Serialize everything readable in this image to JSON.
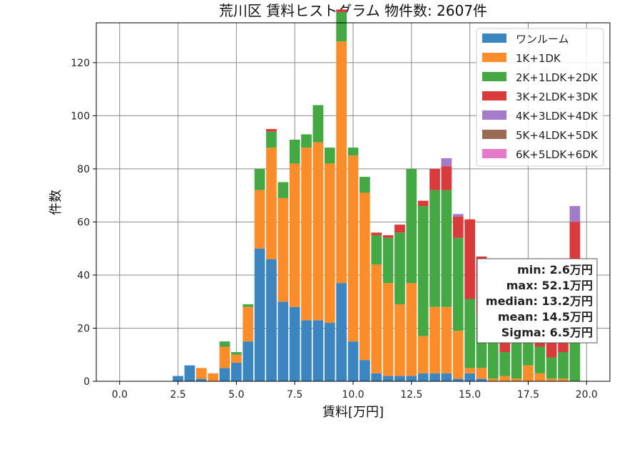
{
  "chart_data": {
    "type": "bar",
    "stacked": true,
    "title": "荒川区 賃料ヒストグラム 物件数: 2607件",
    "xlabel": "賃料[万円]",
    "ylabel": "件数",
    "xlim": [
      -1.0,
      21.0
    ],
    "ylim": [
      0,
      135
    ],
    "xticks": [
      "0.0",
      "2.5",
      "5.0",
      "7.5",
      "10.0",
      "12.5",
      "15.0",
      "17.5",
      "20.0"
    ],
    "xtick_values": [
      0,
      2.5,
      5,
      7.5,
      10,
      12.5,
      15,
      17.5,
      20
    ],
    "yticks": [
      "0",
      "20",
      "40",
      "60",
      "80",
      "100",
      "120"
    ],
    "ytick_values": [
      0,
      20,
      40,
      60,
      80,
      100,
      120
    ],
    "grid": true,
    "legend_position": "top-right",
    "bin_width": 0.5,
    "x": [
      2.5,
      3.0,
      3.5,
      4.0,
      4.5,
      5.0,
      5.5,
      6.0,
      6.5,
      7.0,
      7.5,
      8.0,
      8.5,
      9.0,
      9.5,
      10.0,
      10.5,
      11.0,
      11.5,
      12.0,
      12.5,
      13.0,
      13.5,
      14.0,
      14.5,
      15.0,
      15.5,
      16.0,
      16.5,
      17.0,
      17.5,
      18.0,
      18.5,
      19.0,
      19.5
    ],
    "series": [
      {
        "name": "ワンルーム",
        "color": "#3b86c0",
        "values": [
          2,
          6,
          1,
          0,
          5,
          7,
          15,
          50,
          46,
          30,
          28,
          23,
          23,
          22,
          37,
          15,
          8,
          3,
          2,
          2,
          2,
          3,
          3,
          3,
          1,
          3,
          1,
          0,
          0,
          0,
          0,
          0,
          0,
          0,
          0
        ]
      },
      {
        "name": "1K+1DK",
        "color": "#fd8c2a",
        "values": [
          0,
          0,
          4,
          3,
          8,
          3,
          13,
          22,
          42,
          39,
          54,
          65,
          67,
          60,
          91,
          70,
          63,
          41,
          35,
          27,
          35,
          14,
          25,
          25,
          18,
          2,
          4,
          1,
          2,
          1,
          6,
          3,
          1,
          1,
          0
        ]
      },
      {
        "name": "2K+1LDK+2DK",
        "color": "#44a843",
        "values": [
          0,
          0,
          0,
          0,
          2,
          1,
          1,
          8,
          6,
          6,
          9,
          5,
          14,
          6,
          11,
          3,
          6,
          11,
          17,
          27,
          43,
          49,
          44,
          44,
          35,
          26,
          20,
          16,
          9,
          14,
          10,
          10,
          8,
          10,
          15
        ]
      },
      {
        "name": "3K+2LDK+3DK",
        "color": "#d93a3a",
        "values": [
          0,
          0,
          0,
          0,
          0,
          0,
          0,
          0,
          1,
          0,
          0,
          0,
          0,
          0,
          1,
          0,
          0,
          1,
          1,
          3,
          0,
          2,
          8,
          9,
          8,
          30,
          22,
          23,
          20,
          24,
          24,
          18,
          17,
          16,
          45
        ]
      },
      {
        "name": "4K+3LDK+4DK",
        "color": "#a37cc8",
        "values": [
          0,
          0,
          0,
          0,
          0,
          0,
          0,
          0,
          0,
          0,
          0,
          0,
          0,
          0,
          0,
          0,
          0,
          0,
          0,
          0,
          0,
          0,
          0,
          3,
          1,
          0,
          0,
          0,
          0,
          0,
          0,
          0,
          0,
          0,
          6
        ]
      },
      {
        "name": "5K+4LDK+5DK",
        "color": "#9a6a55",
        "values": [
          0,
          0,
          0,
          0,
          0,
          0,
          0,
          0,
          0,
          0,
          0,
          0,
          0,
          0,
          0,
          0,
          0,
          0,
          0,
          0,
          0,
          0,
          0,
          0,
          0,
          0,
          0,
          0,
          0,
          0,
          0,
          0,
          0,
          0,
          0
        ]
      },
      {
        "name": "6K+5LDK+6DK",
        "color": "#e57ac6",
        "values": [
          0,
          0,
          0,
          0,
          0,
          0,
          0,
          0,
          0,
          0,
          0,
          0,
          0,
          0,
          0,
          0,
          0,
          0,
          0,
          0,
          0,
          0,
          0,
          0,
          0,
          0,
          0,
          0,
          0,
          0,
          0,
          0,
          0,
          0,
          0
        ]
      }
    ],
    "stats": {
      "min": "min: 2.6万円",
      "max": "max: 52.1万円",
      "median": "median: 13.2万円",
      "mean": "mean: 14.5万円",
      "sigma": "Sigma: 6.5万円"
    }
  }
}
